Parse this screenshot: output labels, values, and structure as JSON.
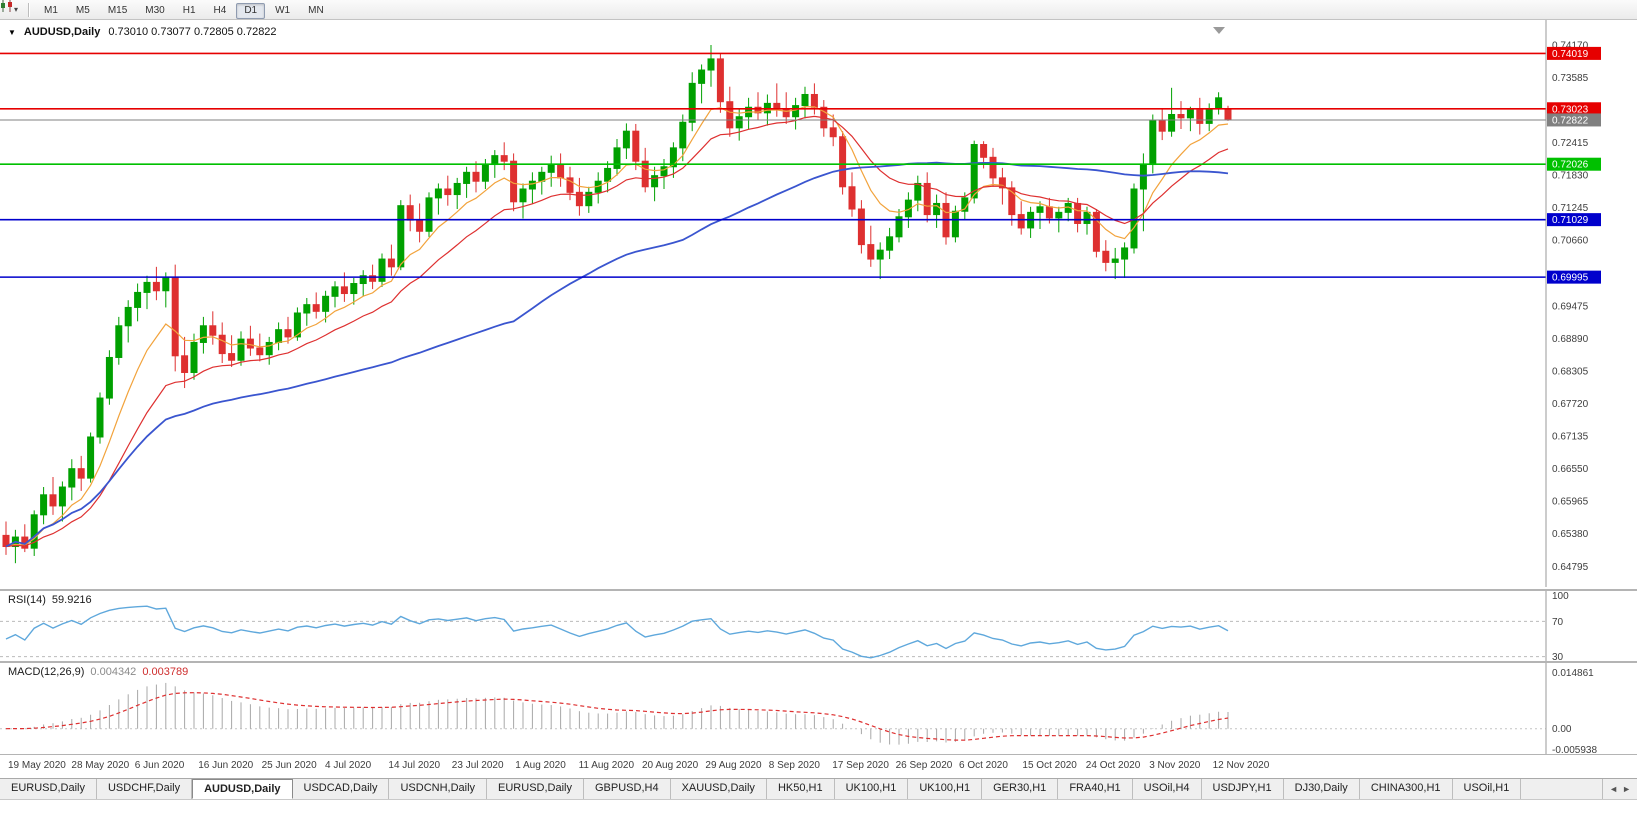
{
  "icons": {
    "collapse_triangle": "▼",
    "dropdown_caret": "▾",
    "scroll_left": "◄",
    "scroll_right": "►"
  },
  "toolbar": {
    "periods": [
      "M1",
      "M5",
      "M15",
      "M30",
      "H1",
      "H4",
      "D1",
      "W1",
      "MN"
    ],
    "active_period": "D1"
  },
  "chart": {
    "title": "AUDUSD,Daily",
    "ohlc": "0.73010 0.73077 0.72805 0.72822"
  },
  "chart_data": {
    "type": "candlestick",
    "symbol": "AUDUSD",
    "timeframe": "Daily",
    "background": "#FFFFFF",
    "bull_color": "#00A000",
    "bear_color": "#DE3030",
    "current_bar": {
      "open": "0.73010",
      "high": "0.73077",
      "low": "0.72805",
      "close": "0.72822"
    },
    "price_axis": {
      "max": 0.7417,
      "min": 0.64795,
      "ticks": [
        "0.74170",
        "0.73585",
        "0.72415",
        "0.71830",
        "0.71245",
        "0.70660",
        "0.69475",
        "0.68890",
        "0.68305",
        "0.67720",
        "0.67135",
        "0.66550",
        "0.65965",
        "0.65380",
        "0.64795"
      ]
    },
    "levels": [
      {
        "price": "0.74019",
        "color": "#E60000",
        "kind": "resistance-line"
      },
      {
        "price": "0.73023",
        "color": "#E60000",
        "kind": "resistance-line"
      },
      {
        "price": "0.72822",
        "color": "#808080",
        "kind": "current-price-line"
      },
      {
        "price": "0.72026",
        "color": "#00C000",
        "kind": "support-line"
      },
      {
        "price": "0.71029",
        "color": "#0000CC",
        "kind": "support-line"
      },
      {
        "price": "0.69995",
        "color": "#0000CC",
        "kind": "support-line"
      }
    ],
    "moving_averages": [
      {
        "period": 8,
        "type": "ema",
        "color": "#F2A33C",
        "width": 1.2
      },
      {
        "period": 17,
        "type": "ema",
        "color": "#DE3030",
        "width": 1.2
      },
      {
        "period": 55,
        "type": "sma",
        "color": "#3A55CF",
        "width": 1.8
      }
    ],
    "x_dates": [
      "19 May 2020",
      "28 May 2020",
      "6 Jun 2020",
      "16 Jun 2020",
      "25 Jun 2020",
      "4 Jul 2020",
      "14 Jul 2020",
      "23 Jul 2020",
      "1 Aug 2020",
      "11 Aug 2020",
      "20 Aug 2020",
      "29 Aug 2020",
      "8 Sep 2020",
      "17 Sep 2020",
      "26 Sep 2020",
      "6 Oct 2020",
      "15 Oct 2020",
      "24 Oct 2020",
      "3 Nov 2020",
      "12 Nov 2020"
    ],
    "candles_ohlc": [
      [
        0.6535,
        0.656,
        0.65,
        0.6515
      ],
      [
        0.6515,
        0.6545,
        0.6485,
        0.6532
      ],
      [
        0.6532,
        0.6555,
        0.6505,
        0.6512
      ],
      [
        0.6512,
        0.658,
        0.6498,
        0.6572
      ],
      [
        0.6572,
        0.6622,
        0.6555,
        0.6608
      ],
      [
        0.6608,
        0.664,
        0.6572,
        0.6588
      ],
      [
        0.6588,
        0.6632,
        0.656,
        0.6622
      ],
      [
        0.6622,
        0.6672,
        0.6598,
        0.6655
      ],
      [
        0.6655,
        0.6678,
        0.6615,
        0.6638
      ],
      [
        0.6638,
        0.672,
        0.663,
        0.6712
      ],
      [
        0.6712,
        0.6792,
        0.67,
        0.6782
      ],
      [
        0.6782,
        0.6868,
        0.677,
        0.6855
      ],
      [
        0.6855,
        0.6928,
        0.6842,
        0.6912
      ],
      [
        0.6912,
        0.6958,
        0.6882,
        0.6945
      ],
      [
        0.6945,
        0.6988,
        0.692,
        0.6972
      ],
      [
        0.6972,
        0.7002,
        0.6942,
        0.699
      ],
      [
        0.699,
        0.7018,
        0.6958,
        0.6975
      ],
      [
        0.6975,
        0.7008,
        0.6945,
        0.6998
      ],
      [
        0.6998,
        0.7022,
        0.683,
        0.6858
      ],
      [
        0.6858,
        0.6892,
        0.68,
        0.6828
      ],
      [
        0.6828,
        0.6898,
        0.6815,
        0.6882
      ],
      [
        0.6882,
        0.6928,
        0.6862,
        0.6912
      ],
      [
        0.6912,
        0.6938,
        0.6878,
        0.6895
      ],
      [
        0.6895,
        0.6918,
        0.6845,
        0.6862
      ],
      [
        0.6862,
        0.6895,
        0.6838,
        0.685
      ],
      [
        0.685,
        0.6902,
        0.684,
        0.6888
      ],
      [
        0.6888,
        0.6912,
        0.6858,
        0.6872
      ],
      [
        0.6872,
        0.6898,
        0.6848,
        0.686
      ],
      [
        0.686,
        0.6892,
        0.6842,
        0.6882
      ],
      [
        0.6882,
        0.6918,
        0.6868,
        0.6905
      ],
      [
        0.6905,
        0.6928,
        0.688,
        0.6892
      ],
      [
        0.6892,
        0.6945,
        0.6885,
        0.6935
      ],
      [
        0.6935,
        0.6962,
        0.6912,
        0.695
      ],
      [
        0.695,
        0.6972,
        0.6925,
        0.6938
      ],
      [
        0.6938,
        0.6975,
        0.6918,
        0.6965
      ],
      [
        0.6965,
        0.6992,
        0.6945,
        0.6982
      ],
      [
        0.6982,
        0.7008,
        0.6955,
        0.697
      ],
      [
        0.697,
        0.6998,
        0.695,
        0.6988
      ],
      [
        0.6988,
        0.7012,
        0.6965,
        0.7002
      ],
      [
        0.7002,
        0.7022,
        0.6978,
        0.6992
      ],
      [
        0.6992,
        0.7042,
        0.6982,
        0.7032
      ],
      [
        0.7032,
        0.7058,
        0.7002,
        0.7018
      ],
      [
        0.7018,
        0.7138,
        0.7012,
        0.7128
      ],
      [
        0.7128,
        0.7148,
        0.7082,
        0.7102
      ],
      [
        0.7102,
        0.7132,
        0.7062,
        0.7082
      ],
      [
        0.7082,
        0.7152,
        0.7072,
        0.7142
      ],
      [
        0.7142,
        0.7168,
        0.7112,
        0.7158
      ],
      [
        0.7158,
        0.7182,
        0.7128,
        0.7148
      ],
      [
        0.7148,
        0.7178,
        0.7122,
        0.7168
      ],
      [
        0.7168,
        0.7198,
        0.7142,
        0.7188
      ],
      [
        0.7188,
        0.7208,
        0.7152,
        0.7172
      ],
      [
        0.7172,
        0.7212,
        0.7158,
        0.7202
      ],
      [
        0.7202,
        0.7228,
        0.7178,
        0.7218
      ],
      [
        0.7218,
        0.7242,
        0.7192,
        0.7208
      ],
      [
        0.7208,
        0.7222,
        0.7118,
        0.7135
      ],
      [
        0.7135,
        0.7168,
        0.7105,
        0.7158
      ],
      [
        0.7158,
        0.7188,
        0.7132,
        0.7172
      ],
      [
        0.7172,
        0.7198,
        0.7148,
        0.7188
      ],
      [
        0.7188,
        0.7218,
        0.7162,
        0.7202
      ],
      [
        0.7202,
        0.7222,
        0.7162,
        0.7178
      ],
      [
        0.7178,
        0.7198,
        0.7138,
        0.7152
      ],
      [
        0.7152,
        0.7178,
        0.711,
        0.7128
      ],
      [
        0.7128,
        0.7162,
        0.7115,
        0.7152
      ],
      [
        0.7152,
        0.7188,
        0.7132,
        0.7172
      ],
      [
        0.7172,
        0.7208,
        0.7152,
        0.7195
      ],
      [
        0.7195,
        0.7248,
        0.7182,
        0.7232
      ],
      [
        0.7232,
        0.7276,
        0.7212,
        0.7262
      ],
      [
        0.7262,
        0.7275,
        0.7192,
        0.7208
      ],
      [
        0.7208,
        0.7232,
        0.7152,
        0.7162
      ],
      [
        0.7162,
        0.7198,
        0.7136,
        0.7182
      ],
      [
        0.7182,
        0.7212,
        0.7158,
        0.7198
      ],
      [
        0.7198,
        0.7242,
        0.7178,
        0.7232
      ],
      [
        0.7232,
        0.7292,
        0.7208,
        0.7278
      ],
      [
        0.7278,
        0.7368,
        0.7262,
        0.7348
      ],
      [
        0.7348,
        0.7382,
        0.7312,
        0.7372
      ],
      [
        0.7372,
        0.7417,
        0.7342,
        0.7392
      ],
      [
        0.7392,
        0.7402,
        0.7295,
        0.7315
      ],
      [
        0.7315,
        0.7342,
        0.7252,
        0.7268
      ],
      [
        0.7268,
        0.7302,
        0.7245,
        0.7288
      ],
      [
        0.7288,
        0.7322,
        0.7265,
        0.7305
      ],
      [
        0.7305,
        0.7332,
        0.7282,
        0.7295
      ],
      [
        0.7295,
        0.7328,
        0.7272,
        0.7312
      ],
      [
        0.7312,
        0.7348,
        0.7288,
        0.7302
      ],
      [
        0.7302,
        0.7332,
        0.7275,
        0.7288
      ],
      [
        0.7288,
        0.7322,
        0.7265,
        0.7308
      ],
      [
        0.7308,
        0.7342,
        0.7285,
        0.7328
      ],
      [
        0.7328,
        0.7348,
        0.7292,
        0.7305
      ],
      [
        0.7305,
        0.7318,
        0.7252,
        0.7268
      ],
      [
        0.7268,
        0.7292,
        0.7235,
        0.7252
      ],
      [
        0.7252,
        0.7262,
        0.7148,
        0.7162
      ],
      [
        0.7162,
        0.7188,
        0.7108,
        0.7122
      ],
      [
        0.7122,
        0.7138,
        0.7042,
        0.7058
      ],
      [
        0.7058,
        0.7092,
        0.7018,
        0.7032
      ],
      [
        0.7032,
        0.7062,
        0.6996,
        0.7048
      ],
      [
        0.7048,
        0.7088,
        0.7032,
        0.7072
      ],
      [
        0.7072,
        0.7122,
        0.7062,
        0.7108
      ],
      [
        0.7108,
        0.7152,
        0.7088,
        0.7138
      ],
      [
        0.7138,
        0.7182,
        0.7118,
        0.7168
      ],
      [
        0.7168,
        0.7188,
        0.7098,
        0.7112
      ],
      [
        0.7112,
        0.7148,
        0.7088,
        0.7132
      ],
      [
        0.7132,
        0.7152,
        0.7058,
        0.7072
      ],
      [
        0.7072,
        0.7128,
        0.7062,
        0.7118
      ],
      [
        0.7118,
        0.7152,
        0.7102,
        0.7142
      ],
      [
        0.7142,
        0.7245,
        0.7132,
        0.7238
      ],
      [
        0.7238,
        0.7244,
        0.7195,
        0.7215
      ],
      [
        0.7215,
        0.7232,
        0.7162,
        0.7178
      ],
      [
        0.7178,
        0.7196,
        0.713,
        0.716
      ],
      [
        0.716,
        0.7172,
        0.7092,
        0.7112
      ],
      [
        0.7112,
        0.7136,
        0.7076,
        0.7088
      ],
      [
        0.7088,
        0.7126,
        0.707,
        0.7116
      ],
      [
        0.7116,
        0.7136,
        0.7086,
        0.7126
      ],
      [
        0.7126,
        0.7142,
        0.7096,
        0.7106
      ],
      [
        0.7106,
        0.7126,
        0.708,
        0.7116
      ],
      [
        0.7116,
        0.7142,
        0.71,
        0.7132
      ],
      [
        0.7132,
        0.7142,
        0.708,
        0.7096
      ],
      [
        0.7096,
        0.7126,
        0.7076,
        0.7116
      ],
      [
        0.7116,
        0.7122,
        0.7035,
        0.7046
      ],
      [
        0.7046,
        0.7066,
        0.701,
        0.7026
      ],
      [
        0.7026,
        0.7052,
        0.6996,
        0.7032
      ],
      [
        0.7032,
        0.7062,
        0.6998,
        0.7052
      ],
      [
        0.7052,
        0.7168,
        0.7042,
        0.7158
      ],
      [
        0.7158,
        0.7222,
        0.7082,
        0.7202
      ],
      [
        0.7202,
        0.7292,
        0.7186,
        0.7282
      ],
      [
        0.7282,
        0.7302,
        0.7246,
        0.7262
      ],
      [
        0.7262,
        0.734,
        0.7252,
        0.7292
      ],
      [
        0.7292,
        0.7316,
        0.7266,
        0.7286
      ],
      [
        0.7286,
        0.7306,
        0.7262,
        0.73
      ],
      [
        0.73,
        0.7322,
        0.7256,
        0.7276
      ],
      [
        0.7276,
        0.7312,
        0.7262,
        0.7302
      ],
      [
        0.7302,
        0.7332,
        0.7292,
        0.7322
      ],
      [
        0.7301,
        0.73077,
        0.72805,
        0.72822
      ]
    ],
    "rsi": {
      "label": "RSI(14)",
      "value": "59.9216",
      "period": 14,
      "color": "#5FA8DC",
      "axis_labels": [
        "100",
        "70",
        "30"
      ],
      "dashed_levels": [
        70,
        30
      ]
    },
    "macd": {
      "label": "MACD(12,26,9)",
      "main_value": "0.004342",
      "signal_value": "0.003789",
      "fast": 12,
      "slow": 26,
      "signal": 9,
      "histogram_color": "#A8A8A8",
      "signal_color": "#DE3030",
      "axis_max": "0.014861",
      "axis_zero": "0.00",
      "axis_min": "-0.005938"
    }
  },
  "tab_bar": {
    "active_index": 2,
    "tabs": [
      "EURUSD,Daily",
      "USDCHF,Daily",
      "AUDUSD,Daily",
      "USDCAD,Daily",
      "USDCNH,Daily",
      "EURUSD,Daily",
      "GBPUSD,H4",
      "XAUUSD,Daily",
      "HK50,H1",
      "UK100,H1",
      "UK100,H1",
      "GER30,H1",
      "FRA40,H1",
      "USOil,H4",
      "USDJPY,H1",
      "DJ30,Daily",
      "CHINA300,H1",
      "USOil,H1"
    ]
  }
}
